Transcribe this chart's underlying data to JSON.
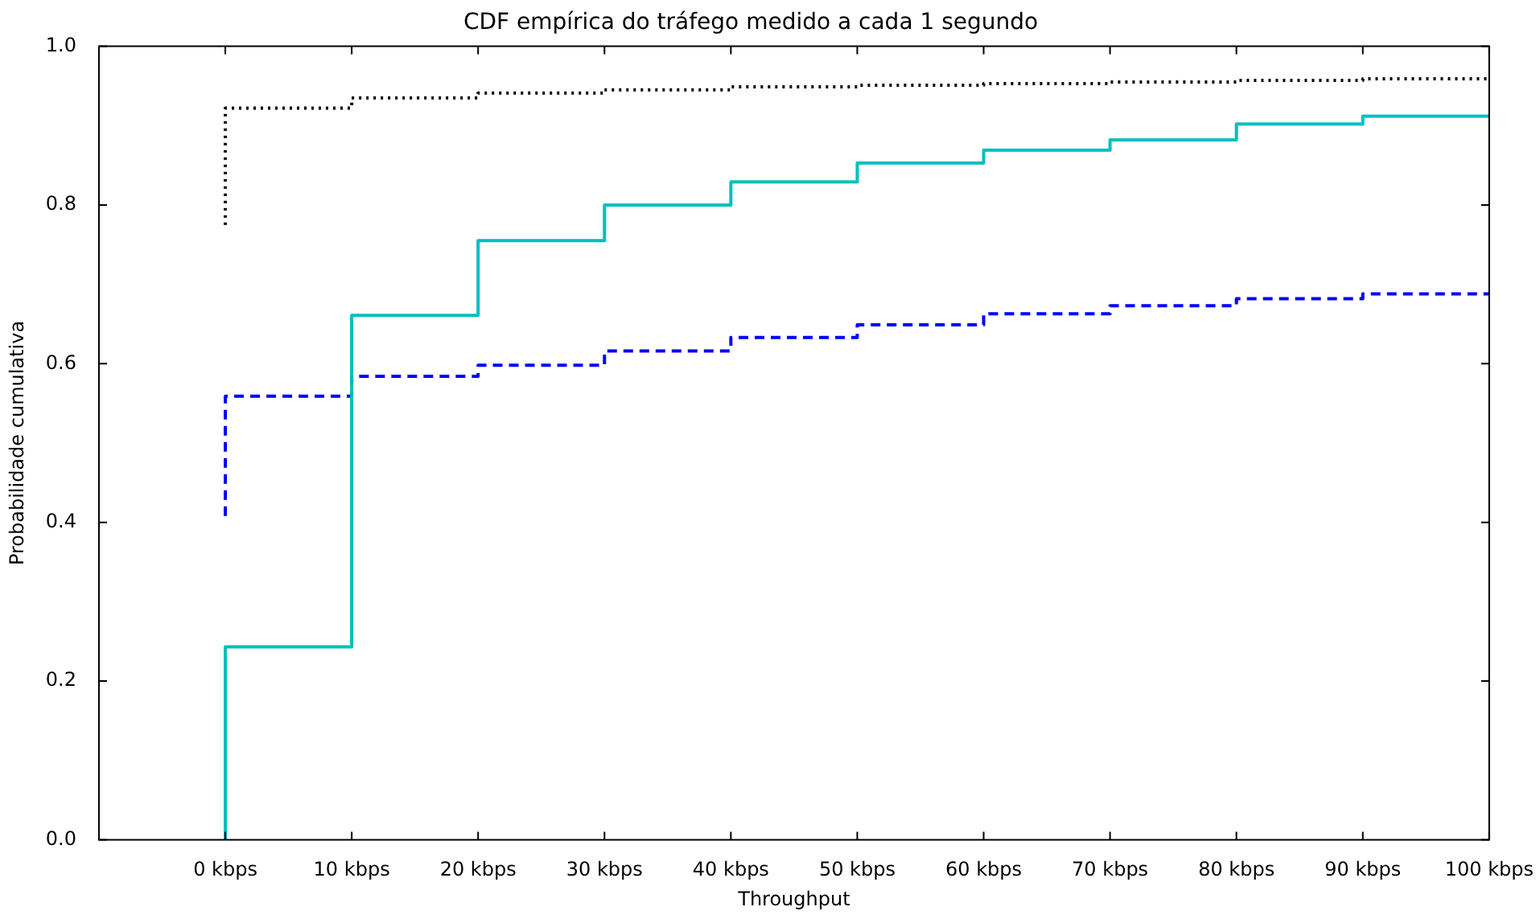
{
  "chart_data": {
    "type": "step",
    "title": "CDF empírica do tráfego medido a cada 1 segundo",
    "xlabel": "Throughput",
    "ylabel": "Probabilidade cumulativa",
    "xlim": [
      -10,
      100
    ],
    "xticks": [
      {
        "value": 0,
        "label": "0 kbps"
      },
      {
        "value": 10,
        "label": "10 kbps"
      },
      {
        "value": 20,
        "label": "20 kbps"
      },
      {
        "value": 30,
        "label": "30 kbps"
      },
      {
        "value": 40,
        "label": "40 kbps"
      },
      {
        "value": 50,
        "label": "50 kbps"
      },
      {
        "value": 60,
        "label": "60 kbps"
      },
      {
        "value": 70,
        "label": "70 kbps"
      },
      {
        "value": 80,
        "label": "80 kbps"
      },
      {
        "value": 90,
        "label": "90 kbps"
      },
      {
        "value": 100,
        "label": "100 kbps"
      }
    ],
    "ylim": [
      0,
      1
    ],
    "yticks": [
      {
        "value": 0,
        "label": "0.0"
      },
      {
        "value": 0.2,
        "label": "0.2"
      },
      {
        "value": 0.4,
        "label": "0.4"
      },
      {
        "value": 0.6,
        "label": "0.6"
      },
      {
        "value": 0.8,
        "label": "0.8"
      },
      {
        "value": 1,
        "label": "1.0"
      }
    ],
    "grid": false,
    "legend": false,
    "marker": "none",
    "series": [
      {
        "color": "#00bfbf",
        "line_style": "solid",
        "x": [
          0,
          0,
          10,
          20,
          30,
          40,
          50,
          60,
          70,
          80,
          90,
          100
        ],
        "values": [
          0,
          0.243,
          0.661,
          0.755,
          0.8,
          0.829,
          0.853,
          0.869,
          0.882,
          0.902,
          0.912,
          0.912
        ]
      },
      {
        "color": "#0000ff",
        "line_style": "dashed",
        "x": [
          0,
          0,
          10,
          20,
          30,
          40,
          50,
          60,
          70,
          80,
          90,
          100
        ],
        "values": [
          0.408,
          0.559,
          0.584,
          0.598,
          0.616,
          0.633,
          0.649,
          0.663,
          0.673,
          0.682,
          0.688,
          0.688
        ]
      },
      {
        "color": "#000000",
        "line_style": "dotted",
        "x": [
          0,
          0,
          10,
          20,
          30,
          40,
          50,
          60,
          70,
          80,
          90,
          100
        ],
        "values": [
          0.775,
          0.922,
          0.935,
          0.941,
          0.945,
          0.949,
          0.951,
          0.953,
          0.955,
          0.957,
          0.959,
          0.959
        ]
      }
    ]
  }
}
